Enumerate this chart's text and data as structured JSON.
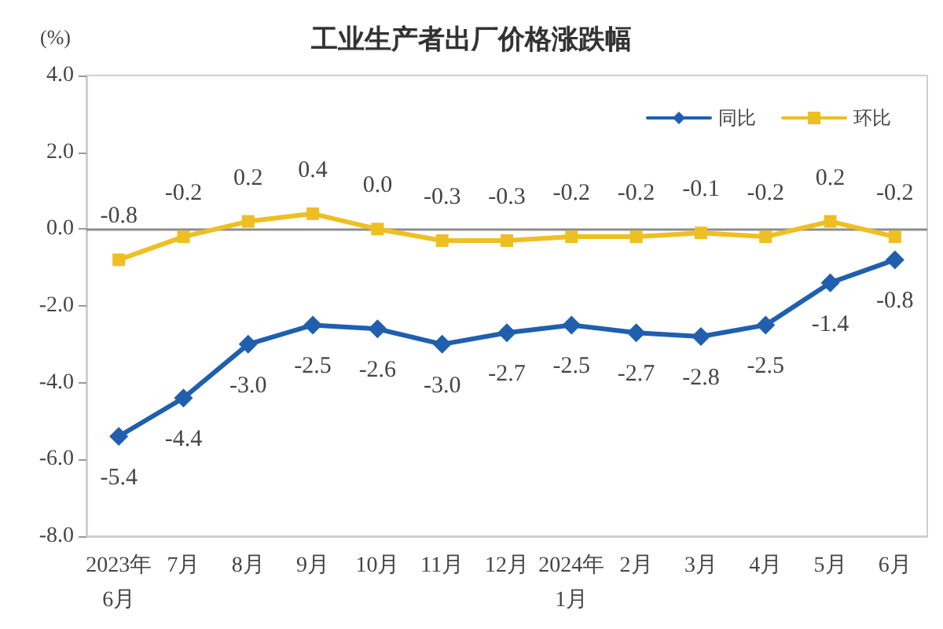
{
  "chart_data": {
    "type": "line",
    "title": "工业生产者出厂价格涨跌幅",
    "ylabel": "(%)",
    "categories": [
      "2023年\n6月",
      "7月",
      "8月",
      "9月",
      "10月",
      "11月",
      "12月",
      "2024年\n1月",
      "2月",
      "3月",
      "4月",
      "5月",
      "6月"
    ],
    "series": [
      {
        "name": "同比",
        "color": "#1f5fae",
        "marker": "diamond",
        "values": [
          -5.4,
          -4.4,
          -3.0,
          -2.5,
          -2.6,
          -3.0,
          -2.7,
          -2.5,
          -2.7,
          -2.8,
          -2.5,
          -1.4,
          -0.8
        ],
        "value_labels": [
          "-5.4",
          "-4.4",
          "-3.0",
          "-2.5",
          "-2.6",
          "-3.0",
          "-2.7",
          "-2.5",
          "-2.7",
          "-2.8",
          "-2.5",
          "-1.4",
          "-0.8"
        ]
      },
      {
        "name": "环比",
        "color": "#eebf22",
        "marker": "square",
        "values": [
          -0.8,
          -0.2,
          0.2,
          0.4,
          0.0,
          -0.3,
          -0.3,
          -0.2,
          -0.2,
          -0.1,
          -0.2,
          0.2,
          -0.2
        ],
        "value_labels": [
          "-0.8",
          "-0.2",
          "0.2",
          "0.4",
          "0.0",
          "-0.3",
          "-0.3",
          "-0.2",
          "-0.2",
          "-0.1",
          "-0.2",
          "0.2",
          "-0.2"
        ]
      }
    ],
    "ylim": [
      -8,
      4
    ],
    "yticks": [
      {
        "value": -8,
        "label": "-8.0"
      },
      {
        "value": -6,
        "label": "-6.0"
      },
      {
        "value": -4,
        "label": "-4.0"
      },
      {
        "value": -2,
        "label": "-2.0"
      },
      {
        "value": 0,
        "label": "0.0"
      },
      {
        "value": 2,
        "label": "2.0"
      },
      {
        "value": 4,
        "label": "4.0"
      }
    ],
    "grid": false,
    "legend": "top right",
    "line_style": "solid",
    "ref_lines": [
      {
        "axis": "y",
        "value": 0,
        "color": "#8c8c8c"
      }
    ]
  }
}
